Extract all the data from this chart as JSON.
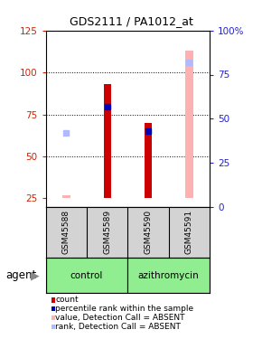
{
  "title": "GDS2111 / PA1012_at",
  "samples": [
    "GSM45588",
    "GSM45589",
    "GSM45590",
    "GSM45591"
  ],
  "ylim_left": [
    20,
    125
  ],
  "ylim_right": [
    0,
    100
  ],
  "yticks_left": [
    25,
    50,
    75,
    100,
    125
  ],
  "yticks_right": [
    0,
    25,
    50,
    75,
    100
  ],
  "ytick_labels_right": [
    "0",
    "25",
    "50",
    "75",
    "100%"
  ],
  "red_bars": {
    "GSM45588": null,
    "GSM45589": [
      25,
      93
    ],
    "GSM45590": [
      25,
      70
    ],
    "GSM45591": null
  },
  "blue_dots": {
    "GSM45588": null,
    "GSM45589": 57,
    "GSM45590": 43,
    "GSM45591": null
  },
  "pink_bars": {
    "GSM45588": [
      25,
      27
    ],
    "GSM45589": null,
    "GSM45590": null,
    "GSM45591": [
      25,
      113
    ]
  },
  "light_blue_dots": {
    "GSM45588": 42,
    "GSM45589": null,
    "GSM45590": null,
    "GSM45591": 82
  },
  "bar_width": 0.18,
  "grid_lines": [
    50,
    75,
    100
  ],
  "colors": {
    "red": "#cc0000",
    "blue": "#0000bb",
    "pink": "#ffb0b0",
    "light_blue": "#b0b8ff",
    "left_tick_color": "#cc2200",
    "right_tick_color": "#2222cc"
  },
  "legend_items": [
    {
      "color": "#cc0000",
      "label": "count"
    },
    {
      "color": "#0000bb",
      "label": "percentile rank within the sample"
    },
    {
      "color": "#ffb0b0",
      "label": "value, Detection Call = ABSENT"
    },
    {
      "color": "#b0b8ff",
      "label": "rank, Detection Call = ABSENT"
    }
  ],
  "xlabel_agent": "agent",
  "group_label_left": "control",
  "group_label_right": "azithromycin",
  "group_color": "#90ee90"
}
